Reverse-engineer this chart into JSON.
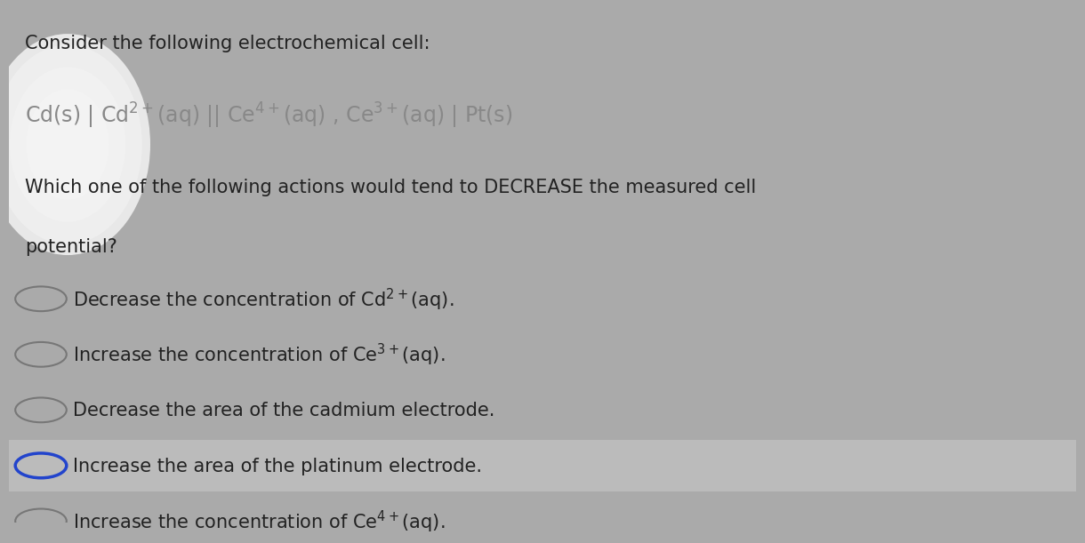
{
  "bg_color": "#aaaaaa",
  "text_color": "#222222",
  "text_color_faded": "#888888",
  "title_line": "Consider the following electrochemical cell:",
  "cell_line": "Cd(s) | Cd$^{2+}$(aq) || Ce$^{4+}$(aq) , Ce$^{3+}$(aq) | Pt(s)",
  "question_line1": "Which one of the following actions would tend to DECREASE the measured cell",
  "question_line2": "potential?",
  "options": [
    "Decrease the concentration of Cd$^{2+}$(aq).",
    "Increase the concentration of Ce$^{3+}$(aq).",
    "Decrease the area of the cadmium electrode.",
    "Increase the area of the platinum electrode.",
    "Increase the concentration of Ce$^{4+}$(aq)."
  ],
  "selected_option": 3,
  "font_size_title": 15,
  "font_size_cell": 17,
  "font_size_question": 15,
  "font_size_options": 15,
  "highlight_color": "#bbbbbb",
  "blob_color": "#e8e8e8",
  "selected_circle_color": "#2244cc"
}
